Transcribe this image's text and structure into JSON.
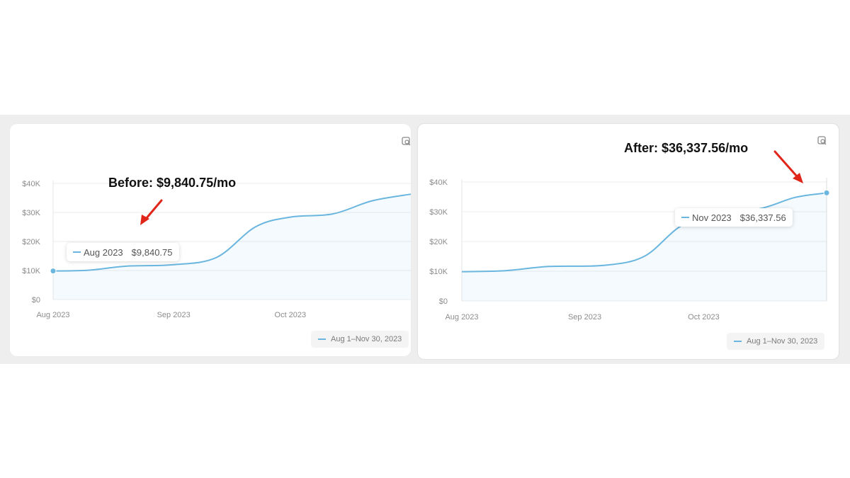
{
  "accent": "#6ab6de",
  "arrow_color": "#e0261a",
  "chart_data": [
    {
      "type": "area",
      "callout": "Before: $9,840.75/mo",
      "yticks": [
        "$40K",
        "$30K",
        "$20K",
        "$10K",
        "$0"
      ],
      "xticks": [
        "Aug 2023",
        "Sep 2023",
        "Oct 2023"
      ],
      "ylim": [
        0,
        40000
      ],
      "grid": true,
      "legend": "Aug 1–Nov 30, 2023",
      "legend_position": "bottom-right",
      "tooltip": {
        "label": "Aug 2023",
        "value": "$9,840.75"
      },
      "points": [
        {
          "x": "2023-08-01",
          "y": 9840.75
        },
        {
          "x": "2023-08-10",
          "y": 10100
        },
        {
          "x": "2023-08-20",
          "y": 11500
        },
        {
          "x": "2023-09-01",
          "y": 12000
        },
        {
          "x": "2023-09-12",
          "y": 14500
        },
        {
          "x": "2023-09-22",
          "y": 25000
        },
        {
          "x": "2023-10-01",
          "y": 28400
        },
        {
          "x": "2023-10-12",
          "y": 29500
        },
        {
          "x": "2023-10-22",
          "y": 34000
        },
        {
          "x": "2023-11-01",
          "y": 36300
        }
      ]
    },
    {
      "type": "area",
      "callout": "After: $36,337.56/mo",
      "yticks": [
        "$40K",
        "$30K",
        "$20K",
        "$10K",
        "$0"
      ],
      "xticks": [
        "Aug 2023",
        "Sep 2023",
        "Oct 2023"
      ],
      "ylim": [
        0,
        40000
      ],
      "grid": true,
      "legend": "Aug 1–Nov 30, 2023",
      "legend_position": "bottom-right",
      "tooltip": {
        "label": "Nov 2023",
        "value": "$36,337.56"
      },
      "points": [
        {
          "x": "2023-08-01",
          "y": 9840.75
        },
        {
          "x": "2023-08-12",
          "y": 10200
        },
        {
          "x": "2023-08-23",
          "y": 11600
        },
        {
          "x": "2023-09-06",
          "y": 12000
        },
        {
          "x": "2023-09-16",
          "y": 15000
        },
        {
          "x": "2023-09-25",
          "y": 25000
        },
        {
          "x": "2023-10-04",
          "y": 29800
        },
        {
          "x": "2023-10-15",
          "y": 31000
        },
        {
          "x": "2023-10-24",
          "y": 34800
        },
        {
          "x": "2023-11-01",
          "y": 36337.56
        }
      ]
    }
  ]
}
